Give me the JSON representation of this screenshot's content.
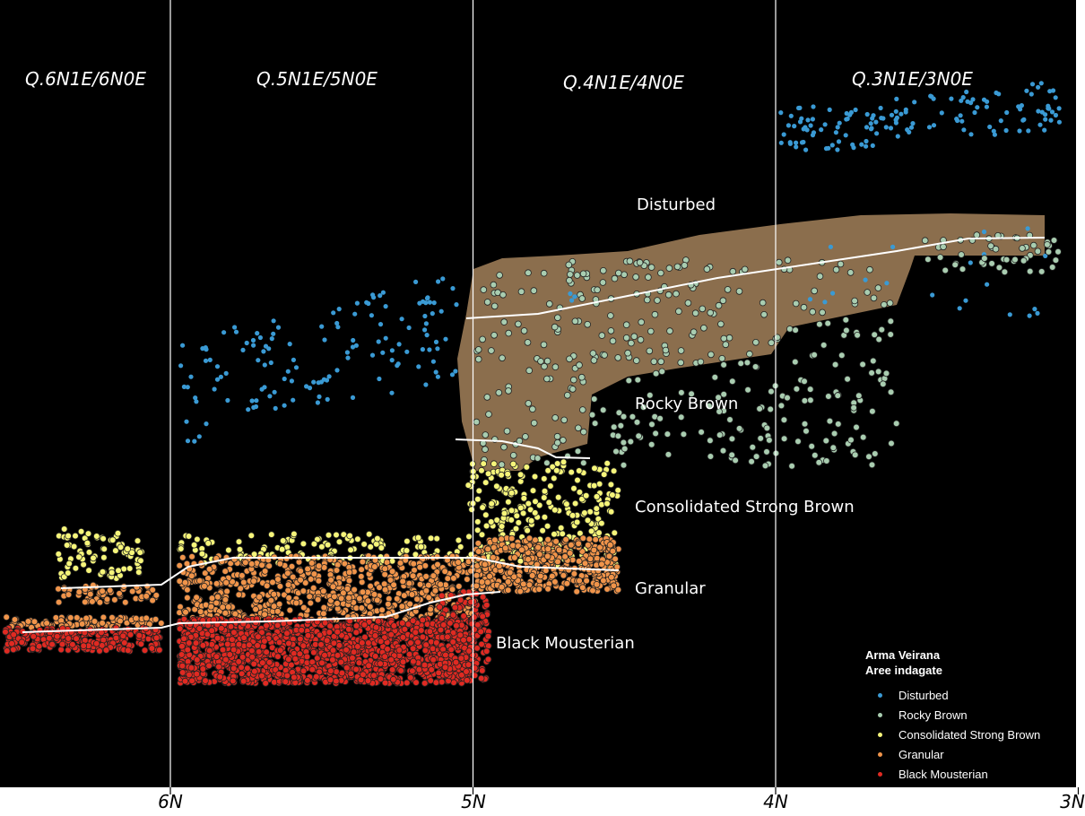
{
  "chart_data": {
    "type": "scatter",
    "xlabel": "",
    "ylabel": "",
    "x_ticks": [
      "6N",
      "5N",
      "4N",
      "3N"
    ],
    "x_tick_values": [
      6,
      5,
      4,
      3
    ],
    "xlim": [
      6.56,
      3.0
    ],
    "grid": "vertical lines at tick values",
    "quadrant_titles": [
      "Q.6N1E/6N0E",
      "Q.5N1E/5N0E",
      "Q.4N1E/4N0E",
      "Q.3N1E/3N0E"
    ],
    "layer_labels": [
      "Disturbed",
      "Rocky Brown",
      "Consolidated Strong Brown",
      "Granular",
      "Black Mousterian"
    ],
    "legend": {
      "title_line1": "Arma Veirana",
      "title_line2": "Aree indagate",
      "placement": "bottom-right"
    },
    "series": [
      {
        "name": "Disturbed",
        "color": "#3a9ad4",
        "x_extent": [
          5.97,
          3.03
        ]
      },
      {
        "name": "Rocky Brown",
        "color": "#a9cdb0",
        "x_extent": [
          5.0,
          3.05
        ]
      },
      {
        "name": "Consolidated Strong Brown",
        "color": "#f6f57a",
        "x_extent": [
          6.37,
          4.5
        ]
      },
      {
        "name": "Granular",
        "color": "#f0944a",
        "x_extent": [
          6.55,
          4.5
        ]
      },
      {
        "name": "Black Mousterian",
        "color": "#e02a22",
        "x_extent": [
          6.55,
          4.97
        ]
      }
    ],
    "background": "#000000",
    "photo_color": "#9a7a55"
  }
}
